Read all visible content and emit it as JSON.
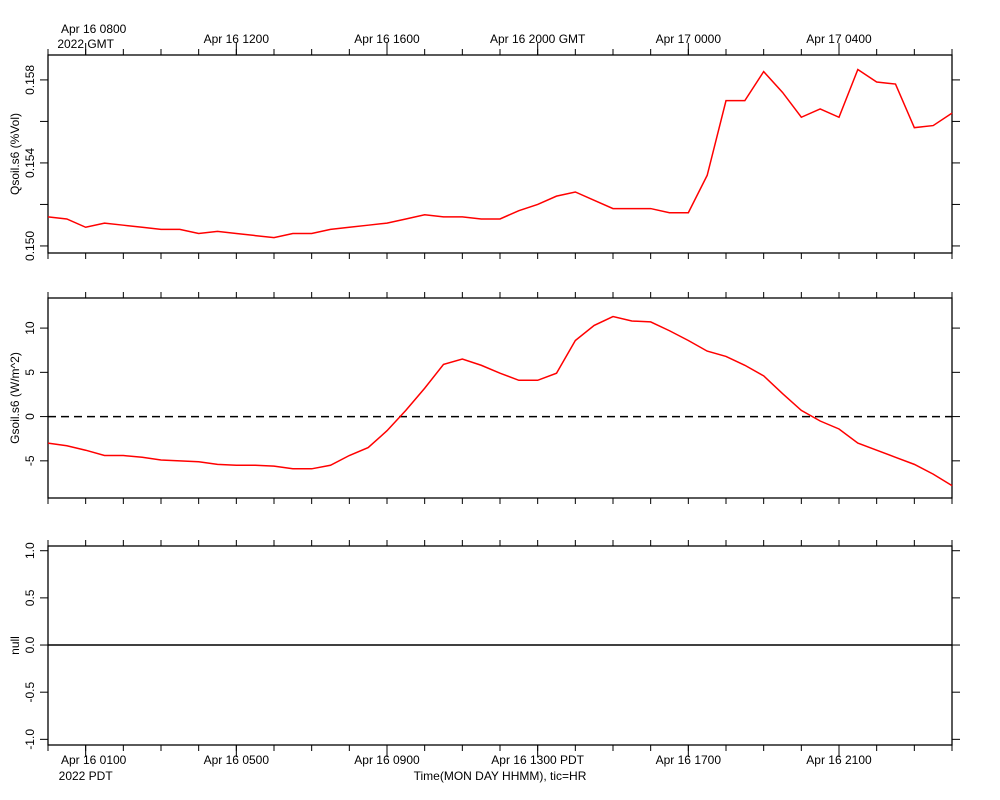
{
  "chart_data": [
    {
      "type": "line",
      "y_label": "Qsoil.s6 (%Vol)",
      "xaxis_side": "top",
      "x_note": "2022 GMT",
      "xlim": [
        7,
        31
      ],
      "ylim": [
        0.14966,
        0.1592
      ],
      "xticks": [
        {
          "value": 8,
          "label": "Apr 16 0800"
        },
        {
          "value": 12,
          "label": "Apr 16 1200"
        },
        {
          "value": 16,
          "label": "Apr 16 1600"
        },
        {
          "value": 20,
          "label": "Apr 16 2000 GMT"
        },
        {
          "value": 24,
          "label": "Apr 17 0000"
        },
        {
          "value": 28,
          "label": "Apr 17 0400"
        }
      ],
      "xticks_minor": [
        7,
        8,
        9,
        10,
        11,
        12,
        13,
        14,
        15,
        16,
        17,
        18,
        19,
        20,
        21,
        22,
        23,
        24,
        25,
        26,
        27,
        28,
        29,
        30,
        31
      ],
      "yticks": [
        {
          "value": 0.15,
          "label": "0.150"
        },
        {
          "value": 0.154,
          "label": "0.154"
        },
        {
          "value": 0.158,
          "label": "0.158"
        }
      ],
      "yticks_minor": [
        0.152,
        0.156
      ],
      "x": [
        7,
        7.5,
        8,
        8.5,
        9,
        9.5,
        10,
        10.5,
        11,
        11.5,
        12,
        12.5,
        13,
        13.5,
        14,
        14.5,
        15,
        15.5,
        16,
        16.5,
        17,
        17.5,
        18,
        18.5,
        19,
        19.5,
        20,
        20.5,
        21,
        21.5,
        22,
        22.5,
        23,
        23.5,
        24,
        24.5,
        25,
        25.5,
        26,
        26.5,
        27,
        27.5,
        28,
        28.5,
        29,
        29.5,
        30,
        30.5,
        31
      ],
      "series": [
        {
          "color": "#ff0000",
          "values": [
            0.1514,
            0.1513,
            0.1509,
            0.1511,
            0.151,
            0.1509,
            0.1508,
            0.1508,
            0.1506,
            0.1507,
            0.1506,
            0.1505,
            0.1504,
            0.1506,
            0.1506,
            0.1508,
            0.1509,
            0.151,
            0.1511,
            0.1513,
            0.1515,
            0.1514,
            0.1514,
            0.1513,
            0.1513,
            0.1517,
            0.152,
            0.1524,
            0.1526,
            0.1522,
            0.1518,
            0.1518,
            0.1518,
            0.1516,
            0.1516,
            0.1534,
            0.157,
            0.157,
            0.1584,
            0.1574,
            0.1562,
            0.1566,
            0.1562,
            0.1585,
            0.1579,
            0.1578,
            0.1557,
            0.1558,
            0.1564
          ]
        }
      ]
    },
    {
      "type": "line",
      "y_label": "Gsoil.s6 (W/m^2)",
      "xlim": [
        7,
        31
      ],
      "ylim": [
        -9.2,
        13.4
      ],
      "xticks_minor": [
        7,
        8,
        9,
        10,
        11,
        12,
        13,
        14,
        15,
        16,
        17,
        18,
        19,
        20,
        21,
        22,
        23,
        24,
        25,
        26,
        27,
        28,
        29,
        30,
        31
      ],
      "yticks": [
        -5,
        0,
        5,
        10
      ],
      "zero_line": {
        "value": 0,
        "style": "dashed"
      },
      "x": [
        7,
        7.5,
        8,
        8.5,
        9,
        9.5,
        10,
        10.5,
        11,
        11.5,
        12,
        12.5,
        13,
        13.5,
        14,
        14.5,
        15,
        15.5,
        16,
        16.5,
        17,
        17.5,
        18,
        18.5,
        19,
        19.5,
        20,
        20.5,
        21,
        21.5,
        22,
        22.5,
        23,
        23.5,
        24,
        24.5,
        25,
        25.5,
        26,
        26.5,
        27,
        27.5,
        28,
        28.5,
        29,
        29.5,
        30,
        30.5,
        31
      ],
      "series": [
        {
          "color": "#ff0000",
          "values": [
            -3.0,
            -3.3,
            -3.8,
            -4.4,
            -4.4,
            -4.6,
            -4.9,
            -5.0,
            -5.1,
            -5.4,
            -5.5,
            -5.5,
            -5.6,
            -5.9,
            -5.9,
            -5.5,
            -4.4,
            -3.5,
            -1.6,
            0.7,
            3.2,
            5.9,
            6.5,
            5.8,
            4.9,
            4.1,
            4.1,
            4.9,
            8.6,
            10.3,
            11.3,
            10.8,
            10.7,
            9.7,
            8.6,
            7.4,
            6.8,
            5.8,
            4.6,
            2.6,
            0.7,
            -0.5,
            -1.4,
            -3.0,
            -3.8,
            -4.6,
            -5.4,
            -6.5,
            -7.8
          ]
        }
      ]
    },
    {
      "type": "line",
      "y_label": "null",
      "xaxis_side": "bottom",
      "x_note": "2022 PDT",
      "x_label": "Time(MON DAY HHMM), tic=HR",
      "xlim": [
        7,
        31
      ],
      "ylim": [
        -1.06,
        1.05
      ],
      "xticks": [
        {
          "value": 8,
          "label": "Apr 16 0100"
        },
        {
          "value": 12,
          "label": "Apr 16 0500"
        },
        {
          "value": 16,
          "label": "Apr 16 0900"
        },
        {
          "value": 20,
          "label": "Apr 16 1300 PDT"
        },
        {
          "value": 24,
          "label": "Apr 16 1700"
        },
        {
          "value": 28,
          "label": "Apr 16 2100"
        }
      ],
      "xticks_minor": [
        7,
        8,
        9,
        10,
        11,
        12,
        13,
        14,
        15,
        16,
        17,
        18,
        19,
        20,
        21,
        22,
        23,
        24,
        25,
        26,
        27,
        28,
        29,
        30,
        31
      ],
      "yticks": [
        {
          "value": -1,
          "label": "-1.0"
        },
        {
          "value": -0.5,
          "label": "-0.5"
        },
        {
          "value": 0,
          "label": "0.0"
        },
        {
          "value": 0.5,
          "label": "0.5"
        },
        {
          "value": 1,
          "label": "1.0"
        }
      ],
      "zero_line": {
        "value": 0,
        "style": "solid"
      },
      "series": []
    }
  ]
}
